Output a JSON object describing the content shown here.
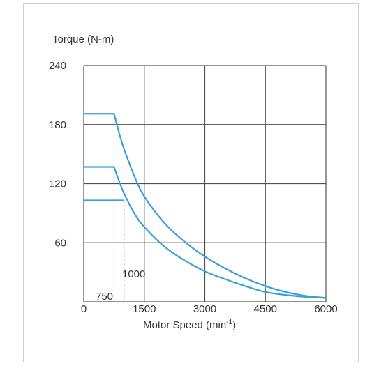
{
  "chart_data": {
    "type": "line",
    "ylabel": "Torque (N-m)",
    "xlabel_text": "Motor Speed (min",
    "xlabel_sup": "-1",
    "xlabel_close": ")",
    "xlim": [
      0,
      6000
    ],
    "ylim": [
      0,
      240
    ],
    "x_ticks": [
      "0",
      "1500",
      "3000",
      "4500",
      "6000"
    ],
    "y_ticks": [
      "240",
      "180",
      "120",
      "60"
    ],
    "grid": true,
    "annotations": [
      {
        "text": "750",
        "x": 750
      },
      {
        "text": "1000",
        "x": 1000
      }
    ],
    "series": [
      {
        "x": [
          0,
          750,
          900,
          1000,
          1250,
          1500,
          2000,
          2500,
          3000,
          3500,
          4000,
          4500,
          5000,
          5500,
          6000
        ],
        "values": [
          191,
          191,
          168,
          155,
          128,
          107,
          80,
          61,
          46,
          34,
          24,
          16,
          10,
          6,
          4
        ]
      },
      {
        "x": [
          0,
          750,
          900,
          1000,
          1250,
          1500,
          2000,
          2500,
          3000,
          3500,
          4000,
          4500,
          5000,
          5500,
          6000
        ],
        "values": [
          137,
          137,
          120,
          110,
          90,
          76,
          56,
          42,
          31,
          23,
          16,
          10,
          7,
          5,
          4
        ]
      },
      {
        "x": [
          0,
          1000
        ],
        "values": [
          103,
          103
        ]
      }
    ],
    "colors": {
      "series": "#3aa0d8",
      "grid": "#505050",
      "dashed": "#888888",
      "text": "#333333"
    }
  }
}
